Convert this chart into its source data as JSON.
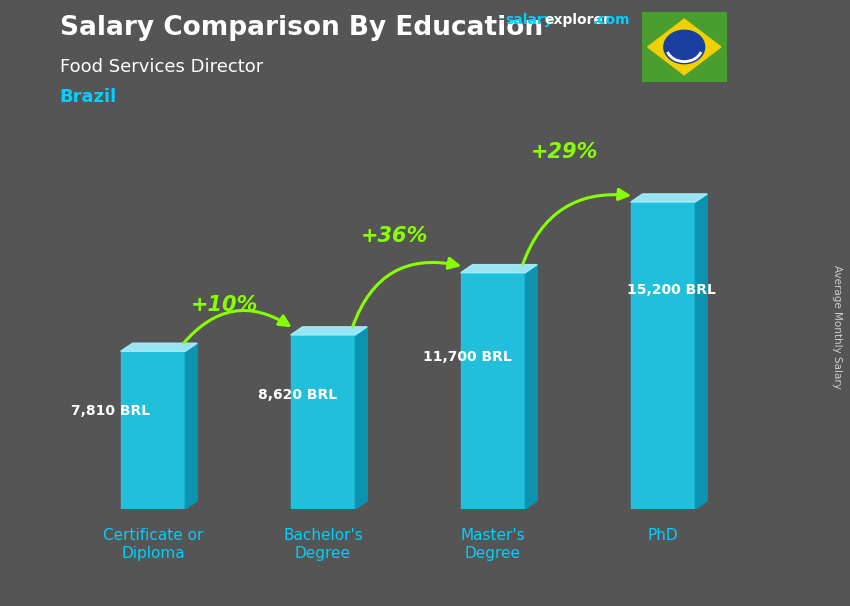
{
  "title": "Salary Comparison By Education",
  "subtitle": "Food Services Director",
  "country": "Brazil",
  "ylabel": "Average Monthly Salary",
  "categories": [
    "Certificate or\nDiploma",
    "Bachelor's\nDegree",
    "Master's\nDegree",
    "PhD"
  ],
  "values": [
    7810,
    8620,
    11700,
    15200
  ],
  "labels": [
    "7,810 BRL",
    "8,620 BRL",
    "11,700 BRL",
    "15,200 BRL"
  ],
  "pct_changes": [
    "+10%",
    "+36%",
    "+29%"
  ],
  "bar_color_face": "#1ec8e8",
  "bar_color_light": "#7ae8f8",
  "bar_color_dark": "#0898b8",
  "bar_color_top": "#a0f0ff",
  "bg_color": "#555555",
  "title_color": "#ffffff",
  "subtitle_color": "#ffffff",
  "country_color": "#00cfff",
  "label_color": "#ffffff",
  "pct_color": "#88ff00",
  "arrow_color": "#88ff00",
  "ylim": [
    0,
    18000
  ],
  "bar_width": 0.38,
  "x_positions": [
    0,
    1,
    2,
    3
  ],
  "site_salary_color": "#00cfff",
  "site_explorer_color": "#ffffff",
  "site_com_color": "#00cfff"
}
